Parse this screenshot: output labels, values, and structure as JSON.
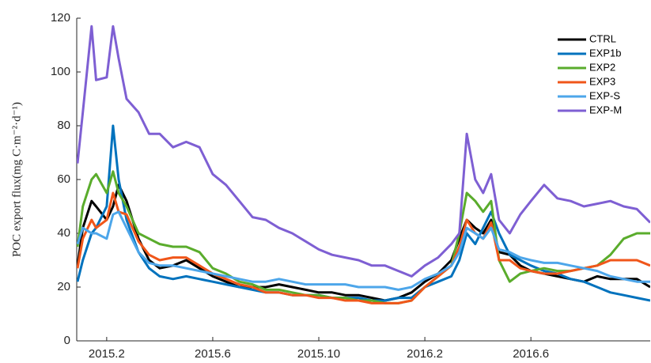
{
  "chart_data": {
    "type": "line",
    "ylabel": "POC export flux(mg C·m⁻²·d⁻¹)",
    "x": [
      0.9,
      1.1,
      1.43,
      1.6,
      2.0,
      2.24,
      2.45,
      2.75,
      3.2,
      3.6,
      4.0,
      4.5,
      5.0,
      5.5,
      6.0,
      6.5,
      7.0,
      7.5,
      8.0,
      8.5,
      9.0,
      9.5,
      10.0,
      10.5,
      11.0,
      11.5,
      12.0,
      12.5,
      13.0,
      13.5,
      14.0,
      14.5,
      15.0,
      15.3,
      15.58,
      15.9,
      16.2,
      16.5,
      16.8,
      17.2,
      17.6,
      18.0,
      18.5,
      19.0,
      19.5,
      20.0,
      20.5,
      21.0,
      21.5,
      22.0,
      22.5
    ],
    "series": [
      {
        "name": "CTRL",
        "color": "#000000",
        "values": [
          28,
          42,
          52,
          50,
          45,
          50,
          58,
          52,
          38,
          30,
          27,
          28,
          30,
          27,
          24,
          22,
          20,
          20,
          20,
          21,
          20,
          19,
          18,
          18,
          17,
          17,
          16,
          15,
          16,
          18,
          22,
          25,
          30,
          38,
          45,
          42,
          40,
          45,
          33,
          32,
          28,
          26,
          25,
          24,
          23,
          22,
          24,
          23,
          23,
          23,
          20
        ]
      },
      {
        "name": "EXP1b",
        "color": "#0072bd",
        "values": [
          22,
          30,
          40,
          42,
          50,
          80,
          60,
          45,
          33,
          27,
          24,
          23,
          24,
          23,
          22,
          21,
          20,
          19,
          18,
          18,
          17,
          17,
          17,
          16,
          16,
          16,
          15,
          15,
          16,
          16,
          20,
          22,
          24,
          30,
          40,
          36,
          42,
          48,
          40,
          32,
          30,
          28,
          26,
          25,
          23,
          22,
          20,
          18,
          17,
          16,
          15
        ]
      },
      {
        "name": "EXP2",
        "color": "#5aac2c",
        "values": [
          35,
          50,
          60,
          62,
          55,
          63,
          55,
          50,
          40,
          38,
          36,
          35,
          35,
          33,
          27,
          25,
          22,
          21,
          19,
          19,
          18,
          17,
          17,
          16,
          16,
          15,
          15,
          14,
          14,
          15,
          20,
          24,
          28,
          40,
          55,
          52,
          48,
          52,
          30,
          22,
          25,
          26,
          27,
          26,
          26,
          27,
          28,
          32,
          38,
          40,
          40
        ]
      },
      {
        "name": "EXP3",
        "color": "#f0561a",
        "values": [
          27,
          38,
          45,
          42,
          45,
          55,
          48,
          47,
          37,
          32,
          30,
          31,
          31,
          28,
          25,
          23,
          21,
          20,
          18,
          18,
          17,
          17,
          16,
          16,
          15,
          15,
          14,
          14,
          14,
          15,
          20,
          24,
          28,
          35,
          45,
          40,
          38,
          44,
          30,
          30,
          27,
          26,
          25,
          25,
          26,
          27,
          28,
          30,
          30,
          30,
          28
        ]
      },
      {
        "name": "EXP-S",
        "color": "#4da6ea",
        "values": [
          36,
          42,
          40,
          40,
          38,
          47,
          48,
          42,
          33,
          29,
          28,
          28,
          27,
          26,
          25,
          24,
          23,
          22,
          22,
          23,
          22,
          21,
          21,
          21,
          21,
          20,
          20,
          20,
          19,
          20,
          23,
          25,
          28,
          33,
          42,
          40,
          38,
          42,
          34,
          33,
          31,
          30,
          29,
          29,
          28,
          27,
          26,
          24,
          23,
          22,
          22
        ]
      },
      {
        "name": "EXP-M",
        "color": "#7e5fd3",
        "values": [
          66,
          85,
          117,
          97,
          98,
          117,
          105,
          90,
          85,
          77,
          77,
          72,
          74,
          72,
          62,
          58,
          52,
          46,
          45,
          42,
          40,
          37,
          34,
          32,
          31,
          30,
          28,
          28,
          26,
          24,
          28,
          31,
          36,
          40,
          77,
          60,
          55,
          62,
          45,
          40,
          47,
          52,
          58,
          53,
          52,
          50,
          51,
          52,
          50,
          49,
          44
        ]
      }
    ],
    "xlim": [
      0.87,
      22.5
    ],
    "xticks": [
      {
        "value": 2,
        "label": "2015.2"
      },
      {
        "value": 6,
        "label": "2015.6"
      },
      {
        "value": 10,
        "label": "2015.10"
      },
      {
        "value": 14,
        "label": "2016.2"
      },
      {
        "value": 18,
        "label": "2016.6"
      }
    ],
    "ylim": [
      0,
      120
    ],
    "yticks": [
      0,
      20,
      40,
      60,
      80,
      100,
      120
    ],
    "grid": false,
    "legend": "upper right"
  }
}
